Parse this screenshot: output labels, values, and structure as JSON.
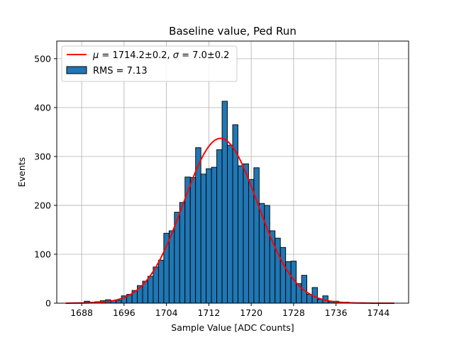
{
  "chart_data": {
    "type": "bar",
    "title": "Baseline value, Ped Run",
    "xlabel": "Sample Value [ADC Counts]",
    "ylabel": "Events",
    "xlim": [
      1683.3,
      1749.7
    ],
    "ylim": [
      0,
      536
    ],
    "xticks": [
      1688,
      1696,
      1704,
      1712,
      1720,
      1728,
      1736,
      1744
    ],
    "yticks": [
      0,
      100,
      200,
      300,
      400,
      500
    ],
    "grid": true,
    "legend_position": "top-left",
    "bin_width": 1,
    "colors": {
      "bars": "#1f77b4",
      "bar_edge": "#000000",
      "fit": "#ff0000",
      "grid": "#b0b0b0"
    },
    "series": [
      {
        "name": "RMS = 7.13",
        "kind": "histogram",
        "bin_centers": [
          1687,
          1688,
          1689,
          1690,
          1691,
          1692,
          1693,
          1694,
          1695,
          1696,
          1697,
          1698,
          1699,
          1700,
          1701,
          1702,
          1703,
          1704,
          1705,
          1706,
          1707,
          1708,
          1709,
          1710,
          1711,
          1712,
          1713,
          1714,
          1715,
          1716,
          1717,
          1718,
          1719,
          1720,
          1721,
          1722,
          1723,
          1724,
          1725,
          1726,
          1727,
          1728,
          1729,
          1730,
          1731,
          1732,
          1733,
          1734,
          1735,
          1736,
          1737,
          1738,
          1739,
          1740,
          1741,
          1742,
          1743,
          1744,
          1745,
          1746
        ],
        "counts": [
          1,
          1,
          4,
          2,
          3,
          5,
          7,
          5,
          6,
          15,
          18,
          26,
          36,
          45,
          55,
          74,
          88,
          143,
          148,
          186,
          206,
          258,
          257,
          318,
          264,
          275,
          278,
          314,
          413,
          323,
          365,
          281,
          285,
          253,
          277,
          204,
          200,
          148,
          133,
          114,
          85,
          86,
          40,
          57,
          18,
          32,
          8,
          15,
          3,
          4,
          1,
          2,
          1,
          0,
          1,
          0,
          0,
          0,
          0,
          0
        ]
      },
      {
        "name_tex": "μ = 1714.2±0.2, σ = 7.0±0.2",
        "kind": "gaussian_fit",
        "mu": 1714.2,
        "mu_err": 0.2,
        "sigma": 7.0,
        "sigma_err": 0.2,
        "amplitude": 337,
        "range": [
          1685,
          1747
        ]
      }
    ],
    "legend": {
      "fit_prefix": "μ",
      "fit_eq": " = 1714.2±0.2, ",
      "fit_sigma": "σ",
      "fit_eq2": " = 7.0±0.2",
      "hist_label": "RMS = 7.13"
    }
  }
}
